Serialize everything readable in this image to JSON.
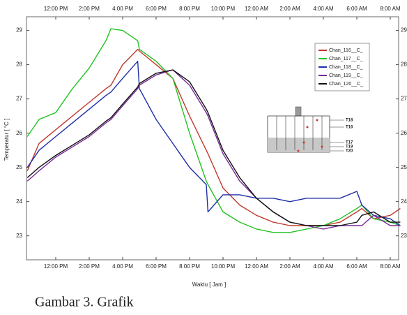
{
  "chart_data": {
    "type": "line",
    "x_label": "Waktu [ Jam ]",
    "y_label": "Temperatur [ °C ]",
    "x": [
      -1.7,
      -1,
      0,
      1,
      2,
      3,
      3.3,
      4,
      4.9,
      5,
      6,
      7,
      8,
      9,
      9.1,
      10,
      11,
      12,
      13,
      14,
      15,
      16,
      17,
      18,
      18.3,
      19,
      20,
      20.6
    ],
    "series": [
      {
        "name": "Chan_116__C_",
        "color": "#c0392b",
        "values": [
          24.9,
          25.7,
          26.1,
          26.5,
          26.9,
          27.3,
          27.4,
          28.0,
          28.45,
          28.4,
          28.0,
          27.6,
          26.5,
          25.5,
          25.4,
          24.4,
          23.9,
          23.6,
          23.4,
          23.3,
          23.3,
          23.3,
          23.4,
          23.7,
          23.8,
          23.5,
          23.6,
          23.8
        ]
      },
      {
        "name": "Chan_117__C_",
        "color": "#22c322",
        "values": [
          25.9,
          26.4,
          26.6,
          27.3,
          27.9,
          28.7,
          29.05,
          29.0,
          28.7,
          28.45,
          28.1,
          27.6,
          26.0,
          24.6,
          24.5,
          23.7,
          23.4,
          23.2,
          23.1,
          23.1,
          23.2,
          23.3,
          23.5,
          23.8,
          23.9,
          23.5,
          23.4,
          23.3
        ]
      },
      {
        "name": "Chan_118__C_",
        "color": "#1f2fa8",
        "values": [
          25.0,
          25.5,
          25.9,
          26.3,
          26.7,
          27.1,
          27.2,
          27.6,
          28.1,
          27.3,
          26.4,
          25.7,
          25.0,
          24.5,
          23.7,
          24.2,
          24.2,
          24.1,
          24.1,
          24.0,
          24.1,
          24.1,
          24.1,
          24.3,
          23.9,
          23.6,
          23.5,
          23.3
        ]
      },
      {
        "name": "Chan_119__C_",
        "color": "#7b2a9a",
        "values": [
          24.6,
          24.9,
          25.3,
          25.6,
          25.9,
          26.3,
          26.4,
          26.8,
          27.3,
          27.4,
          27.7,
          27.85,
          27.4,
          26.6,
          26.5,
          25.4,
          24.6,
          24.1,
          23.7,
          23.4,
          23.3,
          23.2,
          23.3,
          23.3,
          23.3,
          23.6,
          23.3,
          23.3
        ]
      },
      {
        "name": "Chan_120__C_",
        "color": "#111111",
        "values": [
          24.7,
          25.0,
          25.35,
          25.65,
          25.95,
          26.35,
          26.45,
          26.85,
          27.35,
          27.45,
          27.75,
          27.85,
          27.5,
          26.7,
          26.6,
          25.5,
          24.7,
          24.1,
          23.7,
          23.4,
          23.3,
          23.3,
          23.3,
          23.4,
          23.6,
          23.7,
          23.4,
          23.4
        ]
      }
    ],
    "xlim": [
      -1.75,
      20.5
    ],
    "xticks": [
      {
        "value": 0,
        "label": "12:00 PM"
      },
      {
        "value": 2,
        "label": "2:00 PM"
      },
      {
        "value": 4,
        "label": "4:00 PM"
      },
      {
        "value": 6,
        "label": "6:00 PM"
      },
      {
        "value": 8,
        "label": "8:00 PM"
      },
      {
        "value": 10,
        "label": "10:00 PM"
      },
      {
        "value": 12,
        "label": "12:00 AM"
      },
      {
        "value": 14,
        "label": "2:00 AM"
      },
      {
        "value": 16,
        "label": "4:00 AM"
      },
      {
        "value": 18,
        "label": "6:00 AM"
      },
      {
        "value": 20,
        "label": "8:00 AM"
      }
    ],
    "ylim": [
      22.3,
      29.4
    ],
    "yticks": [
      23,
      24,
      25,
      26,
      27,
      28,
      29
    ],
    "grid": false,
    "legend": "upper-right",
    "inset_labels": [
      "T18",
      "T16",
      "T17",
      "T19",
      "T20"
    ]
  },
  "caption": "Gambar 3. Grafik"
}
